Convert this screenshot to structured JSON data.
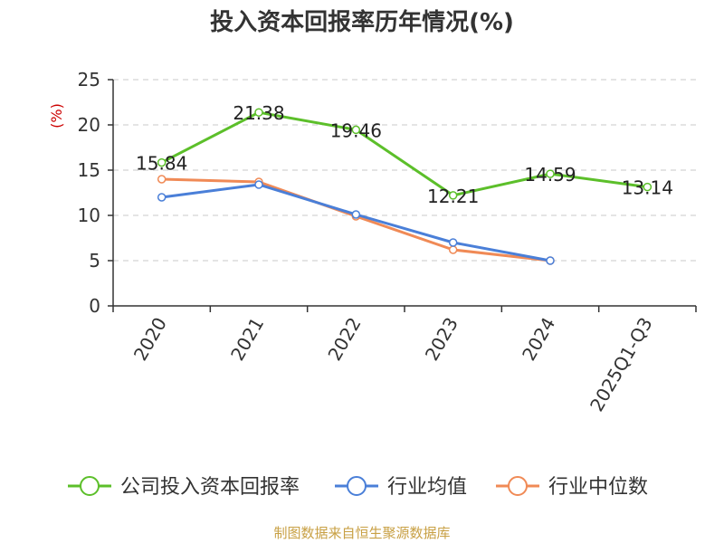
{
  "chart_data": {
    "type": "line",
    "title": "投入资本回报率历年情况(%)",
    "unit_label": "(%)",
    "categories": [
      "2020",
      "2021",
      "2022",
      "2023",
      "2024",
      "2025Q1-Q3"
    ],
    "ylim": [
      0,
      25
    ],
    "yticks": [
      0,
      5,
      10,
      15,
      20,
      25
    ],
    "grid": true,
    "legend_position": "bottom",
    "series": [
      {
        "name": "公司投入资本回报率",
        "color": "#5cbf2a",
        "values": [
          15.84,
          21.38,
          19.46,
          12.21,
          14.59,
          13.14
        ],
        "labels": [
          "15.84",
          "21.38",
          "19.46",
          "12.21",
          "14.59",
          "13.14"
        ]
      },
      {
        "name": "行业均值",
        "color": "#4a7fd8",
        "values": [
          12.0,
          13.4,
          10.1,
          7.0,
          5.0,
          null
        ]
      },
      {
        "name": "行业中位数",
        "color": "#f08a56",
        "values": [
          14.0,
          13.7,
          9.9,
          6.2,
          5.0,
          null
        ]
      }
    ],
    "source": "制图数据来自恒生聚源数据库"
  }
}
